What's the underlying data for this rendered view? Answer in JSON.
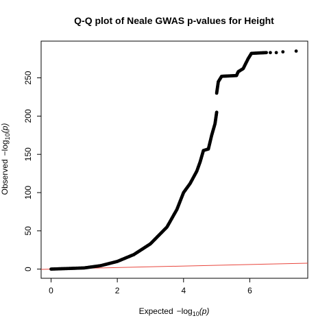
{
  "chart_data": {
    "type": "scatter",
    "title": "Q-Q plot of Neale GWAS p-values for Height",
    "xlabel": {
      "prefix": "Expected",
      "fn": "−log",
      "sub": "10",
      "arg": "(p)"
    },
    "ylabel": {
      "prefix": "Observed",
      "fn": "−log",
      "sub": "10",
      "arg": "(p)"
    },
    "xlim": [
      -0.3,
      7.75
    ],
    "ylim": [
      -12,
      298
    ],
    "x_ticks": [
      0,
      2,
      4,
      6
    ],
    "y_ticks": [
      0,
      50,
      100,
      150,
      200,
      250
    ],
    "grid": false,
    "reference_line": {
      "slope": 1,
      "intercept": 0,
      "color": "#e8453c"
    },
    "point_color": "#000000",
    "curve": [
      {
        "x": 0.0,
        "y": 0.0
      },
      {
        "x": 1.0,
        "y": 1.5
      },
      {
        "x": 1.5,
        "y": 4.5
      },
      {
        "x": 2.0,
        "y": 10
      },
      {
        "x": 2.5,
        "y": 19
      },
      {
        "x": 3.0,
        "y": 33
      },
      {
        "x": 3.5,
        "y": 55
      },
      {
        "x": 3.8,
        "y": 78
      },
      {
        "x": 4.0,
        "y": 100
      },
      {
        "x": 4.2,
        "y": 112
      },
      {
        "x": 4.4,
        "y": 128
      },
      {
        "x": 4.5,
        "y": 140
      },
      {
        "x": 4.6,
        "y": 155
      },
      {
        "x": 4.75,
        "y": 157
      },
      {
        "x": 4.85,
        "y": 175
      },
      {
        "x": 4.95,
        "y": 190
      },
      {
        "x": 5.0,
        "y": 205
      }
    ],
    "upper_curve": [
      {
        "x": 5.0,
        "y": 230
      },
      {
        "x": 5.05,
        "y": 245
      },
      {
        "x": 5.15,
        "y": 252
      },
      {
        "x": 5.6,
        "y": 253
      },
      {
        "x": 5.65,
        "y": 258
      },
      {
        "x": 5.8,
        "y": 262
      },
      {
        "x": 5.95,
        "y": 275
      },
      {
        "x": 6.05,
        "y": 282
      },
      {
        "x": 6.5,
        "y": 283
      }
    ],
    "outliers": [
      {
        "x": 6.62,
        "y": 283
      },
      {
        "x": 6.8,
        "y": 283
      },
      {
        "x": 7.0,
        "y": 284
      },
      {
        "x": 7.4,
        "y": 285
      }
    ]
  }
}
